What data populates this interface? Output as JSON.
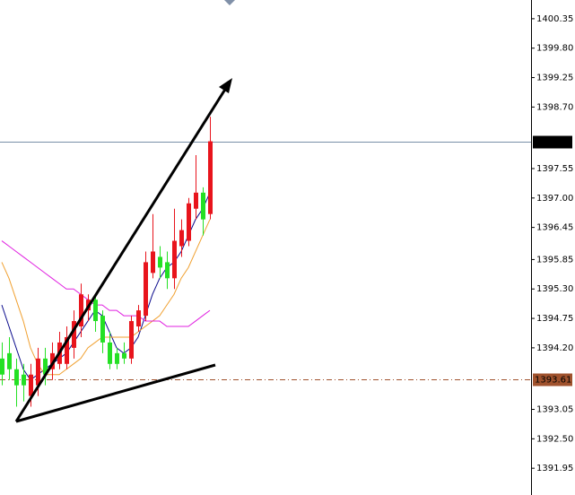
{
  "chart_data": {
    "type": "candlestick",
    "ylim": [
      1391.45,
      1400.7
    ],
    "yticks": [
      1400.35,
      {
        "value": 1399.8,
        "label": "1399.80"
      },
      1399.25,
      {
        "value": 1398.7,
        "label": "1398.70"
      },
      1397.55,
      {
        "value": 1397,
        "label": "1397.00"
      },
      1396.45,
      1395.85,
      {
        "value": 1395.3,
        "label": "1395.30"
      },
      1394.75,
      {
        "value": 1394.2,
        "label": "1394.20"
      },
      1393.05,
      {
        "value": 1392.5,
        "label": "1392.50"
      },
      1391.95
    ],
    "up_color": "#e8141c",
    "down_color": "#24e024",
    "open": [
      1394.0,
      1394.1,
      1393.8,
      1393.7,
      1393.3,
      1393.5,
      1394.0,
      1393.8,
      1393.9,
      1393.9,
      1394.2,
      1394.6,
      1394.9,
      1395.1,
      1394.8,
      1394.3,
      1394.1,
      1394.1,
      1394.0,
      1394.6,
      1394.8,
      1395.6,
      1395.9,
      1395.8,
      1395.5,
      1396.1,
      1396.2,
      1396.8,
      1397.1,
      1396.7
    ],
    "high": [
      1394.3,
      1394.4,
      1394.0,
      1393.9,
      1393.9,
      1394.2,
      1394.2,
      1394.3,
      1394.5,
      1394.6,
      1394.9,
      1395.4,
      1395.2,
      1395.2,
      1394.9,
      1394.5,
      1394.2,
      1394.3,
      1394.8,
      1395.0,
      1396.0,
      1396.7,
      1396.1,
      1396.0,
      1396.8,
      1396.6,
      1397.0,
      1397.8,
      1397.2,
      1398.52
    ],
    "low": [
      1393.5,
      1393.6,
      1393.1,
      1393.2,
      1393.1,
      1393.3,
      1393.5,
      1393.6,
      1393.8,
      1393.8,
      1394.0,
      1394.4,
      1394.7,
      1394.5,
      1394.1,
      1393.8,
      1393.8,
      1393.9,
      1393.9,
      1394.5,
      1394.7,
      1395.5,
      1395.5,
      1395.3,
      1395.3,
      1395.9,
      1396.1,
      1396.6,
      1396.3,
      1396.6
    ],
    "close": [
      1393.7,
      1393.8,
      1393.5,
      1393.5,
      1393.7,
      1394.0,
      1393.7,
      1394.1,
      1394.3,
      1394.4,
      1394.7,
      1395.2,
      1395.1,
      1394.7,
      1394.3,
      1393.9,
      1393.9,
      1394.0,
      1394.7,
      1394.9,
      1395.8,
      1396.0,
      1395.7,
      1395.5,
      1396.2,
      1396.4,
      1396.9,
      1397.1,
      1396.6,
      1398.06
    ],
    "lines": [
      {
        "color": "#0a0a8c",
        "values": [
          1395.0,
          1394.6,
          1394.2,
          1393.8,
          1393.6,
          1393.7,
          1393.8,
          1393.9,
          1394.0,
          1394.1,
          1394.3,
          1394.5,
          1394.7,
          1394.9,
          1394.8,
          1394.5,
          1394.2,
          1394.1,
          1394.2,
          1394.4,
          1394.8,
          1395.2,
          1395.5,
          1395.7,
          1395.8,
          1396.0,
          1396.3,
          1396.6,
          1396.8,
          1397.1
        ]
      },
      {
        "color": "#f0a030",
        "values": [
          1395.8,
          1395.5,
          1395.1,
          1394.7,
          1394.2,
          1393.9,
          1393.7,
          1393.7,
          1393.7,
          1393.8,
          1393.9,
          1394.0,
          1394.2,
          1394.3,
          1394.4,
          1394.4,
          1394.4,
          1394.4,
          1394.4,
          1394.5,
          1394.6,
          1394.7,
          1394.8,
          1395.0,
          1395.2,
          1395.5,
          1395.7,
          1396.0,
          1396.3,
          1396.6
        ]
      },
      {
        "color": "#e020e0",
        "values": [
          1396.2,
          1396.1,
          1396.0,
          1395.9,
          1395.8,
          1395.7,
          1395.6,
          1395.5,
          1395.4,
          1395.3,
          1395.3,
          1395.2,
          1395.1,
          1395.0,
          1395.0,
          1394.9,
          1394.9,
          1394.8,
          1394.8,
          1394.8,
          1394.7,
          1394.7,
          1394.7,
          1394.6,
          1394.6,
          1394.6,
          1394.6,
          1394.7,
          1394.8,
          1394.9
        ]
      }
    ],
    "price_lines": [
      {
        "value": 1398.06,
        "color": "#7890a8",
        "box": "#000000"
      },
      {
        "value": 1393.61,
        "color": "#a0522d",
        "box": "#a0522d"
      }
    ]
  }
}
